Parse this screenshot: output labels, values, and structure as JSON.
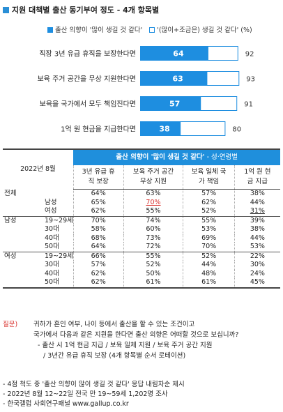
{
  "title": "지원 대책별 출산 동기부여 정도 - 4개 항목별",
  "legend": {
    "filled": "출산 의향이 '많이 생길 것 같다'",
    "hollow": "'(많이+조금은) 생길 것 같다' (%)"
  },
  "colors": {
    "bar": "#1e8ee0",
    "header": "#1f8fdc",
    "accent_red": "#d9312d"
  },
  "chart_data": {
    "type": "bar",
    "title": "지원 대책별 출산 동기부여 정도 - 4개 항목별",
    "categories": [
      "직장 3년 유급 휴직을 보장한다면",
      "보육 주거 공간을 무상 지원한다면",
      "보육을 국가에서 모두 책임진다면",
      "1억 원 현금을 지급한다면"
    ],
    "series": [
      {
        "name": "출산 의향이 '많이 생길 것 같다'",
        "values": [
          64,
          63,
          57,
          38
        ]
      },
      {
        "name": "'(많이+조금은) 생길 것 같다' (%)",
        "values": [
          92,
          93,
          91,
          80
        ]
      }
    ],
    "xlim": [
      0,
      100
    ]
  },
  "table": {
    "year_label": "2022년 8월",
    "header_title": "출산 의향이 '많이 생길 것 같다'",
    "header_suffix": " - 성·연령별",
    "columns": [
      "3년 유급 휴직 보장",
      "보육 주거 공간 무상 지원",
      "보육 일체 국가 책임",
      "1억 원 현금 지급"
    ],
    "rows": [
      {
        "g": "전체",
        "s": "",
        "v": [
          "64%",
          "63%",
          "57%",
          "38%"
        ]
      },
      {
        "g": "",
        "s": "남성",
        "v": [
          "65%",
          "70%",
          "62%",
          "44%"
        ]
      },
      {
        "g": "",
        "s": "여성",
        "v": [
          "62%",
          "55%",
          "52%",
          "31%"
        ]
      },
      {
        "g": "남성",
        "s": "19~29세",
        "v": [
          "70%",
          "74%",
          "55%",
          "39%"
        ]
      },
      {
        "g": "",
        "s": "30대",
        "v": [
          "58%",
          "60%",
          "53%",
          "38%"
        ]
      },
      {
        "g": "",
        "s": "40대",
        "v": [
          "68%",
          "73%",
          "69%",
          "44%"
        ]
      },
      {
        "g": "",
        "s": "50대",
        "v": [
          "64%",
          "72%",
          "70%",
          "53%"
        ]
      },
      {
        "g": "여성",
        "s": "19~29세",
        "v": [
          "66%",
          "55%",
          "52%",
          "22%"
        ]
      },
      {
        "g": "",
        "s": "30대",
        "v": [
          "57%",
          "52%",
          "44%",
          "30%"
        ]
      },
      {
        "g": "",
        "s": "40대",
        "v": [
          "62%",
          "50%",
          "48%",
          "24%"
        ]
      },
      {
        "g": "",
        "s": "50대",
        "v": [
          "62%",
          "61%",
          "61%",
          "45%"
        ]
      }
    ]
  },
  "question": {
    "label": "질문)",
    "lines": [
      "귀하가 혼인 여부, 나이 등에서 출산을 할 수 있는 조건이고",
      "국가에서 다음과 같은 지원을 한다면 출산 의향은 어떠할 것으로 보십니까?",
      "- 출산 시 1억 현금 지급 / 보육 일체 지원 / 보육 주거 공간 지원",
      "/ 3년간 유급 휴직 보장 (4개 항목별 순서 로테이션)"
    ]
  },
  "notes": [
    "- 4점 척도 중 '출산 의향이 많이 생길 것 같다' 응답 내림차순 제시",
    "- 2022년 8월 12~22일 전국 만 19~59세 1,202명 조사",
    "- 한국갤럽 사회연구패널 www.gallup.co.kr"
  ]
}
